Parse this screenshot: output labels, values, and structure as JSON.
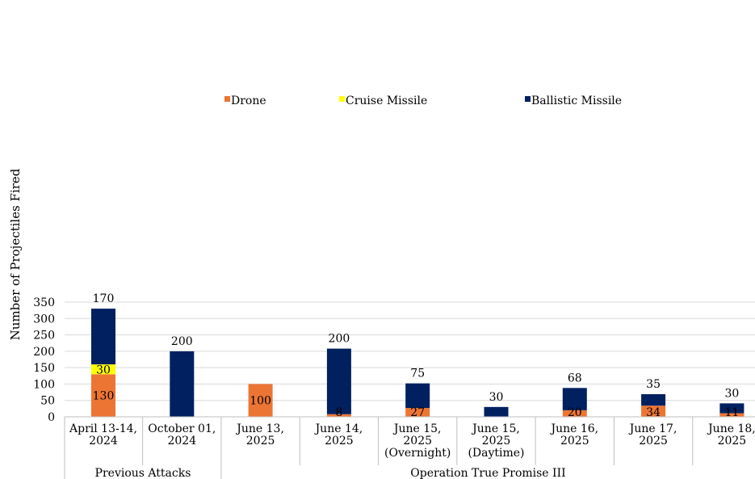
{
  "chart_data": {
    "type": "bar",
    "stacked": true,
    "title": "",
    "ylabel": "Number of Projectiles Fired",
    "xlabel": "",
    "ylim": [
      0,
      350
    ],
    "yticks": [
      0,
      50,
      100,
      150,
      200,
      250,
      300,
      350
    ],
    "grid": true,
    "legend_position": "top-center",
    "categories": [
      [
        "April 13-14,",
        "2024"
      ],
      [
        "October 01,",
        "2024"
      ],
      [
        "June 13,",
        "2025"
      ],
      [
        "June 14,",
        "2025"
      ],
      [
        "June 15,",
        "2025",
        "(Overnight)"
      ],
      [
        "June 15,",
        "2025",
        "(Daytime)"
      ],
      [
        "June 16,",
        "2025"
      ],
      [
        "June 17,",
        "2025"
      ],
      [
        "June 18,",
        "2025"
      ]
    ],
    "series": [
      {
        "name": "Drone",
        "color": "#ED7534",
        "values": [
          130,
          0,
          100,
          8,
          27,
          0,
          20,
          34,
          11
        ],
        "labels": [
          "130",
          "",
          "100",
          "8",
          "27",
          "",
          "20",
          "34",
          "11"
        ]
      },
      {
        "name": "Cruise Missile",
        "color": "#FFFF00",
        "values": [
          30,
          0,
          0,
          0,
          0,
          0,
          0,
          0,
          0
        ],
        "labels": [
          "30",
          "",
          "",
          "",
          "",
          "",
          "",
          "",
          ""
        ]
      },
      {
        "name": "Ballistic Missile",
        "color": "#002060",
        "values": [
          170,
          200,
          0,
          200,
          75,
          30,
          68,
          35,
          30
        ],
        "labels": [
          "170",
          "200",
          "",
          "200",
          "75",
          "30",
          "68",
          "35",
          "30"
        ]
      }
    ],
    "groups": [
      {
        "label": "Previous Attacks",
        "start": 0,
        "end": 1
      },
      {
        "label": "Operation True Promise III",
        "start": 2,
        "end": 8
      }
    ]
  }
}
